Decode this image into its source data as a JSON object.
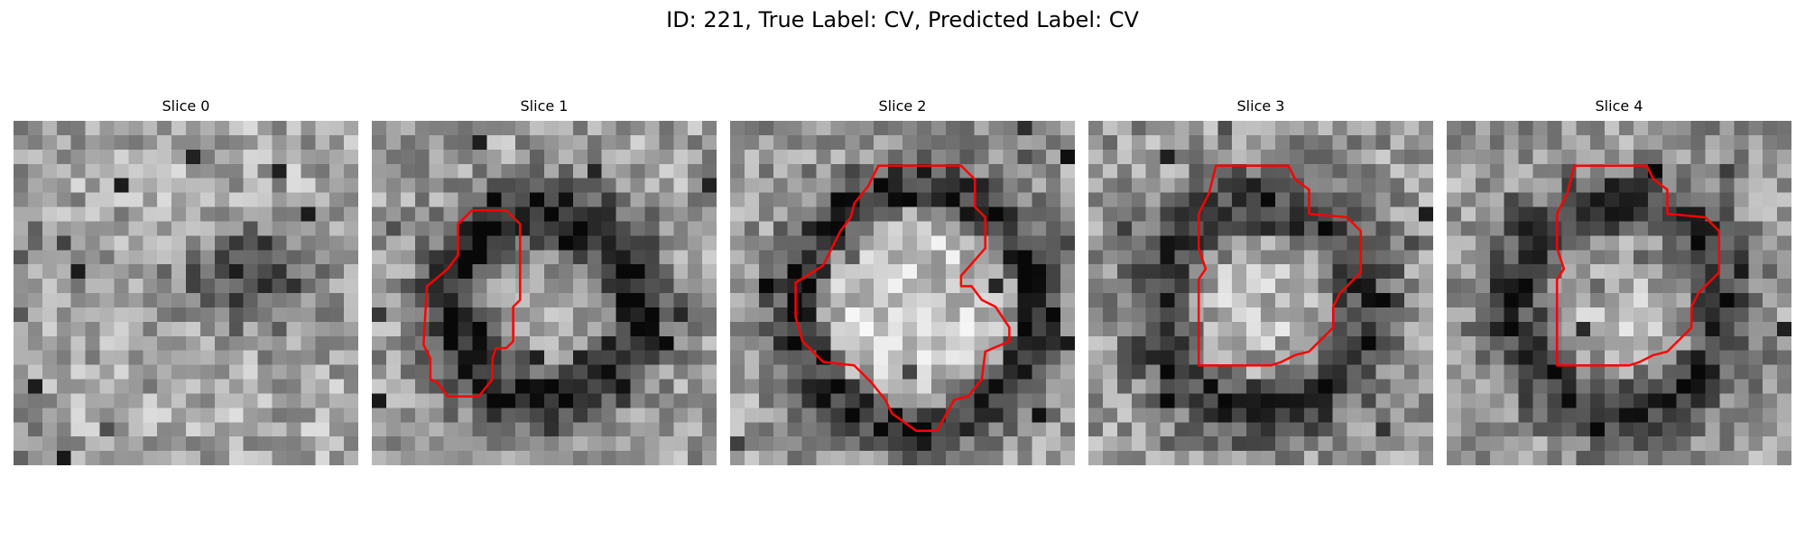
{
  "figure": {
    "title": "ID: 221, True Label: CV, Predicted Label: CV"
  },
  "colors": {
    "background": "#ffffff",
    "contour": "#ff0000"
  },
  "image_style": "grayscale noisy pixel grid",
  "slices": [
    {
      "title": "Slice 0",
      "contour": "none"
    },
    {
      "title": "Slice 1",
      "contour": "red outline"
    },
    {
      "title": "Slice 2",
      "contour": "red outline"
    },
    {
      "title": "Slice 3",
      "contour": "red outline"
    },
    {
      "title": "Slice 4",
      "contour": "red outline"
    }
  ]
}
